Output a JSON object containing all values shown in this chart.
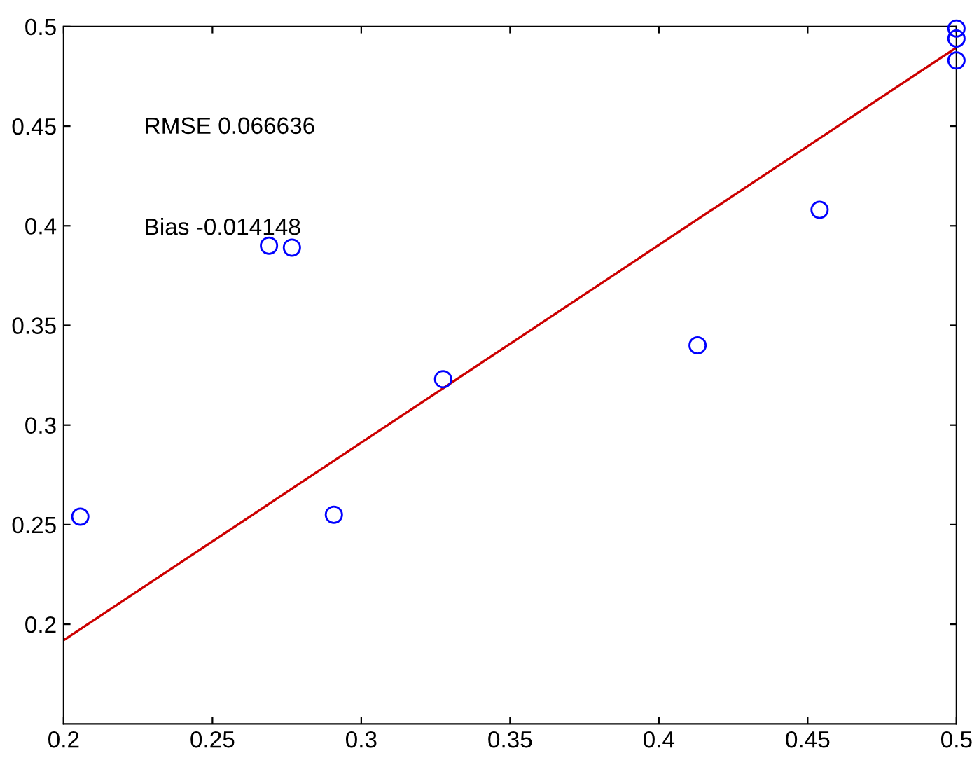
{
  "chart_data": {
    "type": "scatter",
    "xlim": [
      0.2,
      0.5
    ],
    "ylim": [
      0.15,
      0.5
    ],
    "xticks": [
      0.2,
      0.25,
      0.3,
      0.35,
      0.4,
      0.45,
      0.5
    ],
    "yticks": [
      0.2,
      0.25,
      0.3,
      0.35,
      0.4,
      0.45,
      0.5
    ],
    "grid": false,
    "legend": false,
    "series": [
      {
        "marker": "circle",
        "color": "#0000ff",
        "x": [
          0.2056,
          0.269,
          0.2767,
          0.2908,
          0.3275,
          0.413,
          0.454,
          0.5,
          0.5,
          0.5
        ],
        "values": [
          0.254,
          0.39,
          0.389,
          0.255,
          0.323,
          0.34,
          0.408,
          0.499,
          0.494,
          0.483
        ]
      },
      {
        "type": "line",
        "marker": "none",
        "color": "#cc0000",
        "x": [
          0.2,
          0.5
        ],
        "values": [
          0.192,
          0.4895
        ]
      }
    ],
    "annotations": [
      "RMSE 0.066636",
      "Bias -0.014148"
    ]
  }
}
